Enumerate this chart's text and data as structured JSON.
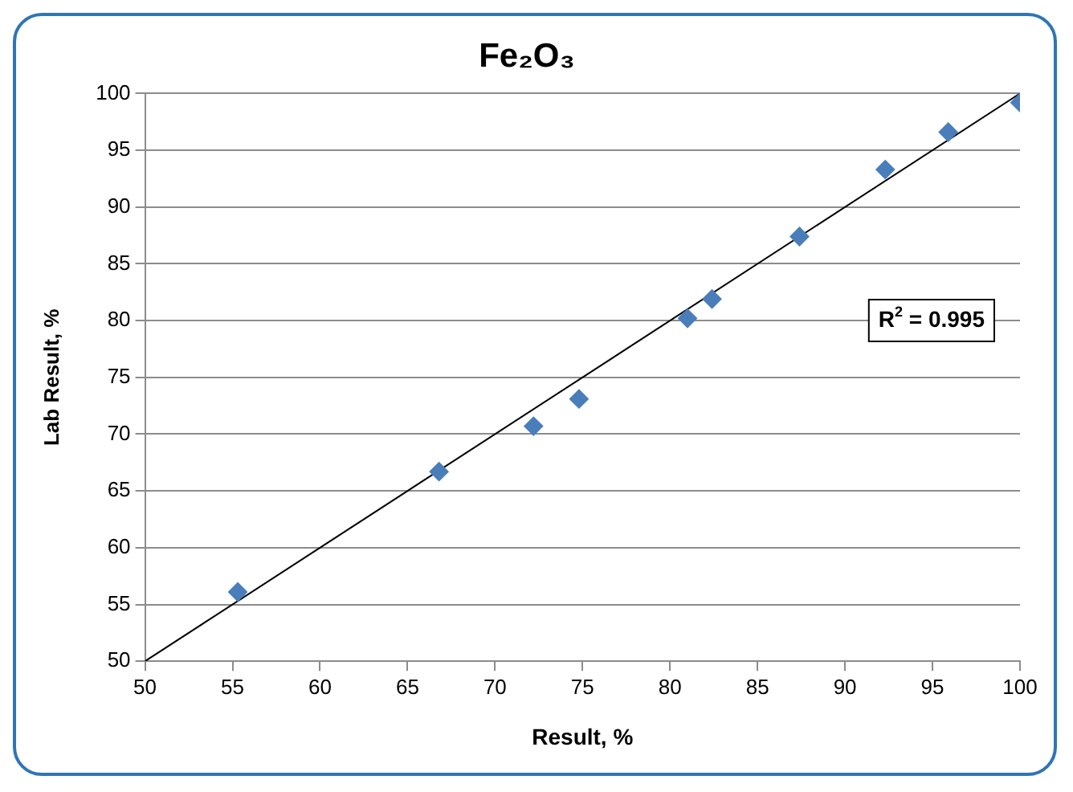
{
  "chart_data": {
    "type": "scatter",
    "title": "Fe₂O₃",
    "xlabel": "Result, %",
    "ylabel": "Lab Result, %",
    "x": [
      55.3,
      66.8,
      72.2,
      74.8,
      81.0,
      82.4,
      87.4,
      92.3,
      95.9,
      100
    ],
    "series": [
      {
        "type": "scatter",
        "color": "#4a7ebb",
        "marker": "diamond",
        "values": [
          56.1,
          66.7,
          70.7,
          73.1,
          80.2,
          81.9,
          87.4,
          93.3,
          96.6,
          99.2
        ]
      },
      {
        "type": "line",
        "color": "#000000",
        "marker": "none",
        "x": [
          50,
          100
        ],
        "values": [
          50,
          100
        ]
      }
    ],
    "xlim": [
      50,
      100
    ],
    "xticks": [
      50,
      55,
      60,
      65,
      70,
      75,
      80,
      85,
      90,
      95,
      100
    ],
    "ylim": [
      50,
      100
    ],
    "yticks": [
      50,
      55,
      60,
      65,
      70,
      75,
      80,
      85,
      90,
      95,
      100
    ],
    "grid": "y",
    "legend": false,
    "annotations": [
      "R$^{2}$ = 0.995"
    ]
  }
}
